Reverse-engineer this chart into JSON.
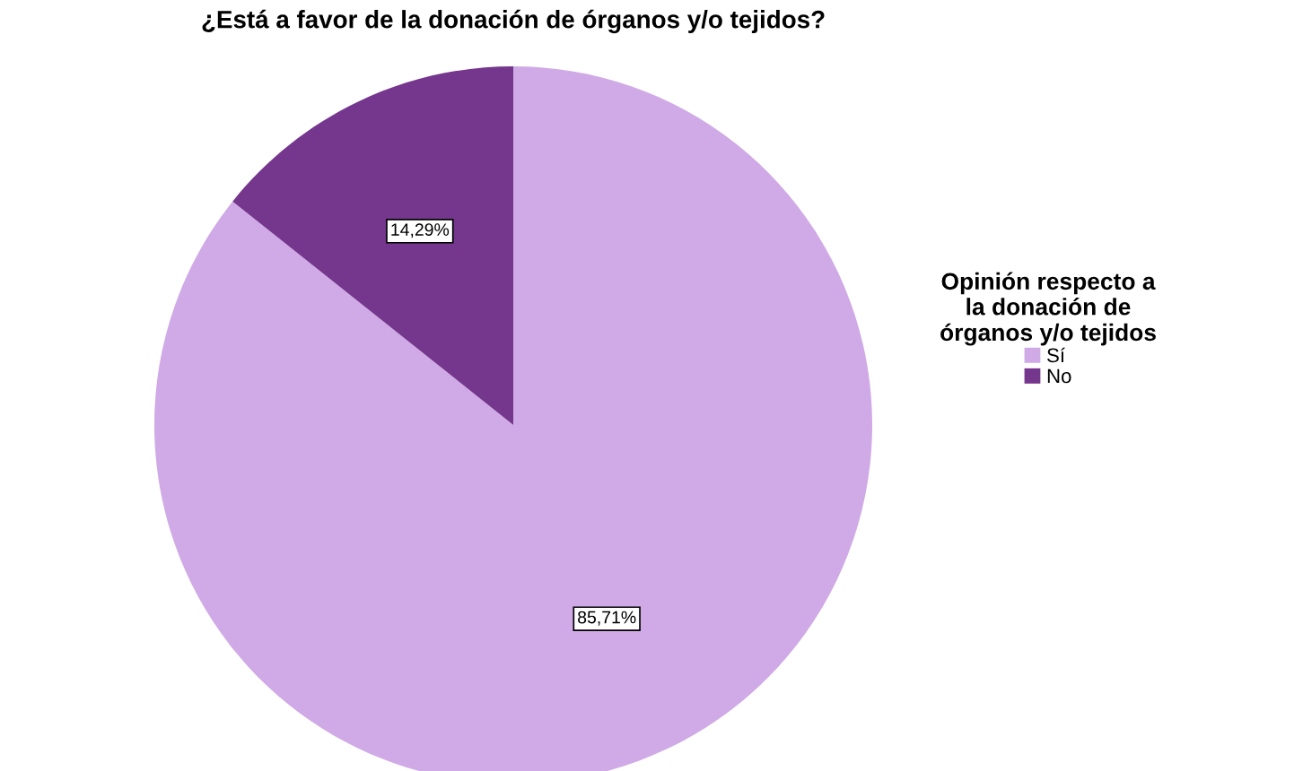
{
  "chart_data": {
    "type": "pie",
    "title": "¿Está a favor de la donación de órganos y/o tejidos?",
    "categories": [
      "Sí",
      "No"
    ],
    "values": [
      85.71,
      14.29
    ],
    "colors": [
      "#d0aae6",
      "#75368d"
    ],
    "value_labels": [
      "85,71%",
      "14,29%"
    ],
    "legend_title": "Opinión respecto a\nla donación de\nórganos y/o tejidos",
    "legend": "right"
  }
}
